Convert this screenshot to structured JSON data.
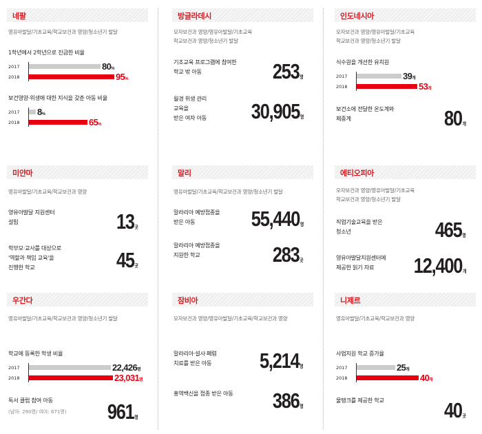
{
  "cards": {
    "nepal": {
      "title": "네팔",
      "subtitle": [
        "영유아발달/기초교육/학교보건과 영양/청소년기 발달"
      ],
      "bar_charts": [
        {
          "label": "1학년에서 2학년으로 진급한 비율",
          "bars": [
            {
              "year": "2017",
              "value": 80,
              "value_text": "80",
              "unit": "%"
            },
            {
              "year": "2018",
              "value": 95,
              "value_text": "95",
              "unit": "%"
            }
          ]
        },
        {
          "label": "보건영양·위생에 대한 지식을 갖춘 아동 비율",
          "bars": [
            {
              "year": "2017",
              "value": 8,
              "value_text": "8",
              "unit": "%"
            },
            {
              "year": "2018",
              "value": 65,
              "value_text": "65",
              "unit": "%"
            }
          ]
        }
      ]
    },
    "bangladesh": {
      "title": "방글라데시",
      "subtitle": [
        "모자보건과 영양/영유아발달/기초교육",
        "학교보건과 영양/청소년기 발달"
      ],
      "stats": [
        {
          "label": [
            "기초교육 프로그램에 참여한",
            "학교 밖 아동"
          ],
          "value": "253",
          "unit": "명"
        },
        {
          "label": [
            "월경 위생 관리",
            "교육을",
            "받은 여자 아동"
          ],
          "value": "30,905",
          "unit": "명"
        }
      ]
    },
    "indonesia": {
      "title": "인도네시아",
      "subtitle": [
        "모자보건과 영양/영유아발달/기초교육",
        "학교보건과 영양/청소년기 발달"
      ],
      "bar_charts": [
        {
          "label": "식수원을 개선한 유치원",
          "bars": [
            {
              "year": "2017",
              "value": 39,
              "value_text": "39",
              "unit": "개"
            },
            {
              "year": "2018",
              "value": 53,
              "value_text": "53",
              "unit": "개"
            }
          ]
        }
      ],
      "stats": [
        {
          "label": [
            "보건소에 전달한 온도계와",
            "체중계"
          ],
          "value": "80",
          "unit": "개"
        }
      ]
    },
    "myanmar": {
      "title": "미얀마",
      "subtitle": [
        "영유아발달/기초교육/학교보건과 영양"
      ],
      "stats": [
        {
          "label": [
            "영유아발달 지원센터",
            "설립"
          ],
          "value": "13",
          "unit": "곳"
        },
        {
          "label": [
            "학부모·교사를 대상으로",
            "'역할과 책임 교육'을",
            "진행한 학교"
          ],
          "value": "45",
          "unit": "곳"
        }
      ]
    },
    "mali": {
      "title": "말리",
      "subtitle": [
        "영유아발달/기초교육/학교보건과 영양/청소년기 발달"
      ],
      "stats": [
        {
          "label": [
            "말라리아 예방접종을",
            "받은 아동"
          ],
          "value": "55,440",
          "unit": "명"
        },
        {
          "label": [
            "말라리아 예방접종을",
            "지원한 학교"
          ],
          "value": "283",
          "unit": "곳"
        }
      ]
    },
    "ethiopia": {
      "title": "에티오피아",
      "subtitle": [
        "모자보건과 영양/영유아발달/기초교육",
        "학교보건과 영양/청소년기 발달"
      ],
      "stats": [
        {
          "label": [
            "직업기술교육을 받은",
            "청소년"
          ],
          "value": "465",
          "unit": "명"
        },
        {
          "label": [
            "영유아발달지원센터에",
            "제공한 읽기 자료"
          ],
          "value": "12,400",
          "unit": "개"
        }
      ]
    },
    "uganda": {
      "title": "우간다",
      "subtitle": [
        "영유아발달/기초교육/학교보건과 영양/청소년기 발달"
      ],
      "bar_charts": [
        {
          "label": "학교에 등록한 학생 비율",
          "bars": [
            {
              "year": "2017",
              "value": 22426,
              "value_text": "22,426",
              "unit": "명"
            },
            {
              "year": "2018",
              "value": 23031,
              "value_text": "23,031",
              "unit": "명"
            }
          ]
        }
      ],
      "stats": [
        {
          "label": [
            "독서 클럽 참여 아동"
          ],
          "note": "(남아: 290명/ 여아: 671명)",
          "value": "961",
          "unit": "명"
        }
      ]
    },
    "zambia": {
      "title": "잠비아",
      "subtitle": [
        "모자보건과 영양/영유아발달/기초교육/학교보건과 영양"
      ],
      "stats": [
        {
          "label": [
            "말라리아·설사·폐렴",
            "치료를 받은 아동"
          ],
          "value": "5,214",
          "unit": "명"
        },
        {
          "label": [
            "홍역백신을 접종 받은 아동"
          ],
          "value": "386",
          "unit": "명"
        }
      ]
    },
    "niger": {
      "title": "니제르",
      "subtitle": [
        "영유아발달/기초교육/학교보건과 영양"
      ],
      "bar_charts": [
        {
          "label": "사업지원 학교 증가율",
          "bars": [
            {
              "year": "2017",
              "value": 25,
              "value_text": "25",
              "unit": "개"
            },
            {
              "year": "2018",
              "value": 40,
              "value_text": "40",
              "unit": "개"
            }
          ]
        }
      ],
      "stats": [
        {
          "label": [
            "물탱크를 제공한 학교"
          ],
          "value": "40",
          "unit": "곳"
        }
      ]
    }
  },
  "colors": {
    "accent": "#e60012",
    "bar_2017": "#cccccc",
    "header_text": "#d91920"
  }
}
